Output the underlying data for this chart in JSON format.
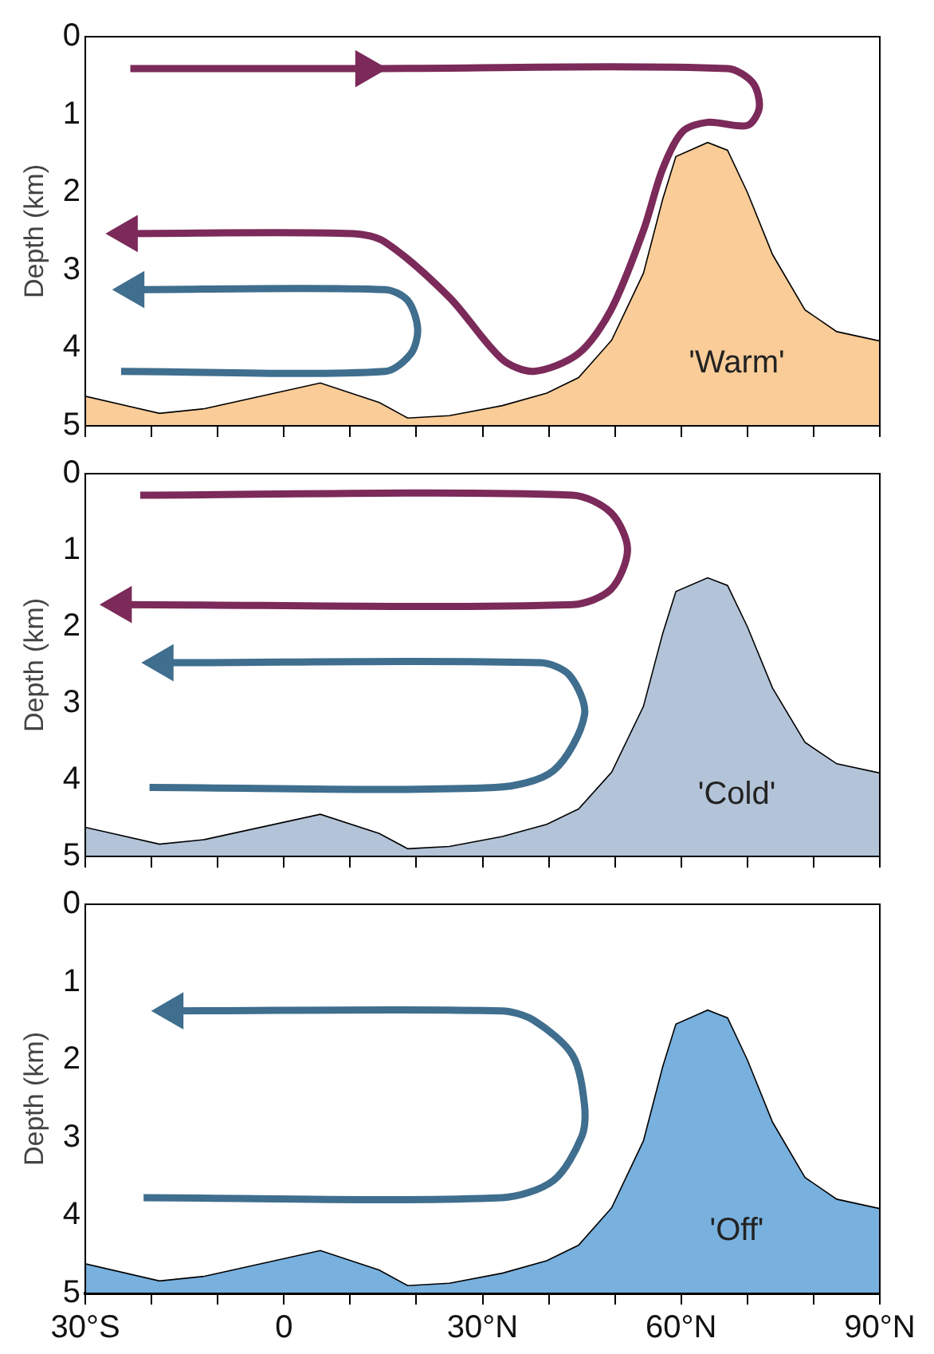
{
  "chart_data": [
    {
      "type": "area",
      "ylabel": "Depth (km)",
      "xlim": [
        -30,
        90
      ],
      "ylim": [
        5,
        0
      ],
      "yticks": [
        0,
        1,
        2,
        3,
        4,
        5
      ],
      "xticks": [
        {
          "value": -30,
          "label": null
        },
        {
          "value": -20,
          "label": null
        },
        {
          "value": -10,
          "label": null
        },
        {
          "value": 0,
          "label": null
        },
        {
          "value": 10,
          "label": null
        },
        {
          "value": 20,
          "label": null
        },
        {
          "value": 30,
          "label": null
        },
        {
          "value": 40,
          "label": null
        },
        {
          "value": 50,
          "label": null
        },
        {
          "value": 60,
          "label": null
        },
        {
          "value": 70,
          "label": null
        },
        {
          "value": 80,
          "label": null
        },
        {
          "value": 90,
          "label": null
        }
      ],
      "tick_labels": "y",
      "legend": false,
      "annotations": [
        "'Warm'"
      ],
      "series": [
        {
          "color": "#f9cc98",
          "x": [
            -30,
            -30,
            -18.8,
            -12,
            5.5,
            14.4,
            18.7,
            25,
            33,
            39.7,
            44.5,
            49.5,
            54.3,
            57.2,
            59.2,
            64,
            67,
            70,
            73.8,
            78.7,
            83.5,
            90,
            90
          ],
          "values": [
            5,
            4.62,
            4.84,
            4.78,
            4.45,
            4.7,
            4.9,
            4.87,
            4.74,
            4.58,
            4.38,
            3.9,
            3.04,
            2.09,
            1.54,
            1.36,
            1.46,
            2.0,
            2.8,
            3.51,
            3.79,
            3.91,
            5
          ]
        },
        {
          "type": "line",
          "color": "#7b2a5a",
          "x": [
            -23.2,
            12.4
          ],
          "values": [
            0.41,
            0.41
          ]
        },
        {
          "type": "line",
          "color": "#7b2a5a",
          "x": [
            12.4,
            67,
            70.8,
            71.8,
            70,
            64,
            60.2,
            57.2,
            54.3,
            49.4,
            44.5,
            37.7,
            32.9,
            25,
            15.3,
            10.5,
            -23.7
          ],
          "values": [
            0.41,
            0.41,
            0.59,
            0.91,
            1.14,
            1.1,
            1.22,
            1.7,
            2.49,
            3.51,
            4.07,
            4.3,
            4.14,
            3.35,
            2.64,
            2.53,
            2.53
          ]
        },
        {
          "type": "line",
          "color": "#3f6e8e",
          "x": [
            -24.6,
            15.3,
            19.2,
            20.2,
            18.7,
            15.3,
            -22.7
          ],
          "values": [
            4.3,
            4.3,
            4.07,
            3.75,
            3.39,
            3.25,
            3.25
          ]
        }
      ]
    },
    {
      "type": "area",
      "ylabel": "Depth (km)",
      "xlim": [
        -30,
        90
      ],
      "ylim": [
        5,
        0
      ],
      "yticks": [
        0,
        1,
        2,
        3,
        4,
        5
      ],
      "xticks": [
        {
          "value": -30,
          "label": null
        },
        {
          "value": -20,
          "label": null
        },
        {
          "value": -10,
          "label": null
        },
        {
          "value": 0,
          "label": null
        },
        {
          "value": 10,
          "label": null
        },
        {
          "value": 20,
          "label": null
        },
        {
          "value": 30,
          "label": null
        },
        {
          "value": 40,
          "label": null
        },
        {
          "value": 50,
          "label": null
        },
        {
          "value": 60,
          "label": null
        },
        {
          "value": 70,
          "label": null
        },
        {
          "value": 80,
          "label": null
        },
        {
          "value": 90,
          "label": null
        }
      ],
      "tick_labels": "y",
      "legend": false,
      "annotations": [
        "'Cold'"
      ],
      "series": [
        {
          "color": "#b3c4d9",
          "x": [
            -30,
            -30,
            -18.8,
            -12,
            5.5,
            14.4,
            18.7,
            25,
            33,
            39.7,
            44.5,
            49.5,
            54.3,
            57.2,
            59.2,
            64,
            67,
            70,
            73.8,
            78.7,
            83.5,
            90,
            90
          ],
          "values": [
            5,
            4.62,
            4.84,
            4.78,
            4.45,
            4.7,
            4.9,
            4.87,
            4.74,
            4.58,
            4.38,
            3.9,
            3.04,
            2.09,
            1.54,
            1.36,
            1.46,
            2.0,
            2.8,
            3.51,
            3.79,
            3.91,
            5
          ]
        },
        {
          "type": "line",
          "color": "#7b2a5a",
          "x": [
            -21.7,
            43.6,
            49.4,
            51.9,
            49.4,
            43.6,
            -24.6
          ],
          "values": [
            0.28,
            0.28,
            0.51,
            0.99,
            1.51,
            1.71,
            1.71
          ]
        },
        {
          "type": "line",
          "color": "#3f6e8e",
          "x": [
            -20.3,
            31.9,
            40.7,
            45.4,
            43.1,
            38.7,
            -18.3
          ],
          "values": [
            4.1,
            4.1,
            3.88,
            3.15,
            2.63,
            2.47,
            2.47
          ]
        }
      ]
    },
    {
      "type": "area",
      "ylabel": "Depth (km)",
      "xlim": [
        -30,
        90
      ],
      "ylim": [
        5,
        0
      ],
      "yticks": [
        0,
        1,
        2,
        3,
        4,
        5
      ],
      "xticks": [
        {
          "value": -30,
          "label": "30°S"
        },
        {
          "value": -20,
          "label": null
        },
        {
          "value": -10,
          "label": null
        },
        0,
        {
          "value": 10,
          "label": null
        },
        {
          "value": 20,
          "label": null
        },
        {
          "value": 30,
          "label": "30°N"
        },
        {
          "value": 40,
          "label": null
        },
        {
          "value": 50,
          "label": null
        },
        {
          "value": 60,
          "label": "60°N"
        },
        {
          "value": 70,
          "label": null
        },
        {
          "value": 80,
          "label": null
        },
        {
          "value": 90,
          "label": "90°N"
        }
      ],
      "legend": false,
      "annotations": [
        "'Off'"
      ],
      "series": [
        {
          "color": "#78b0de",
          "x": [
            -30,
            -30,
            -18.8,
            -12,
            5.5,
            14.4,
            18.7,
            25,
            33,
            39.7,
            44.5,
            49.5,
            54.3,
            57.2,
            59.2,
            64,
            67,
            70,
            73.8,
            78.7,
            83.5,
            90,
            90
          ],
          "values": [
            5,
            4.62,
            4.84,
            4.78,
            4.45,
            4.7,
            4.9,
            4.87,
            4.74,
            4.58,
            4.38,
            3.9,
            3.04,
            2.09,
            1.54,
            1.36,
            1.46,
            2.0,
            2.8,
            3.51,
            3.79,
            3.91,
            5
          ]
        },
        {
          "type": "line",
          "color": "#3f6e8e",
          "x": [
            -21.2,
            32.9,
            40.7,
            45,
            45.4,
            43.6,
            37.7,
            32.9,
            -16.8
          ],
          "values": [
            3.77,
            3.77,
            3.55,
            2.98,
            2.58,
            1.94,
            1.49,
            1.37,
            1.37
          ]
        }
      ]
    }
  ]
}
